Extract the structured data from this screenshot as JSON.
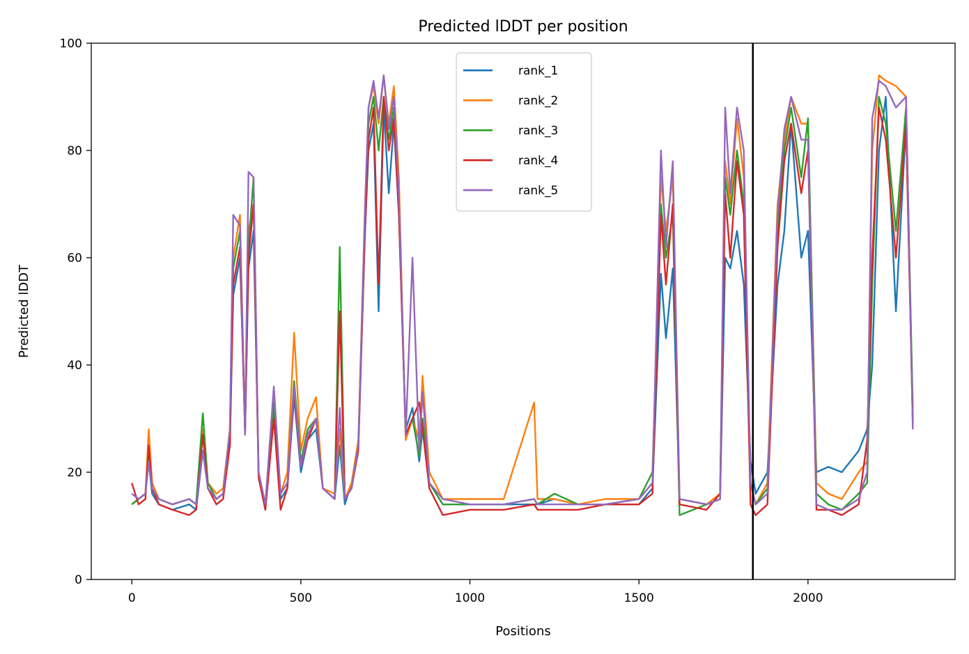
{
  "chart_data": {
    "type": "line",
    "title": "Predicted lDDT per position",
    "xlabel": "Positions",
    "ylabel": "Predicted lDDT",
    "xlim": [
      -120,
      2435
    ],
    "ylim": [
      0,
      100
    ],
    "xticks": [
      0,
      500,
      1000,
      1500,
      2000
    ],
    "yticks": [
      0,
      20,
      40,
      60,
      80,
      100
    ],
    "grid": false,
    "legend_position": "upper-center",
    "vline": {
      "x": 1837,
      "color": "#000000"
    },
    "colors": {
      "rank_1": "#1f77b4",
      "rank_2": "#ff7f0e",
      "rank_3": "#2ca02c",
      "rank_4": "#d62728",
      "rank_5": "#9467bd"
    },
    "x": [
      0,
      20,
      40,
      50,
      60,
      80,
      120,
      170,
      190,
      210,
      225,
      250,
      270,
      290,
      300,
      320,
      335,
      345,
      360,
      375,
      395,
      420,
      440,
      460,
      480,
      500,
      520,
      545,
      565,
      600,
      615,
      630,
      650,
      670,
      690,
      700,
      715,
      730,
      745,
      760,
      775,
      790,
      810,
      830,
      850,
      860,
      880,
      920,
      1000,
      1100,
      1190,
      1200,
      1250,
      1320,
      1400,
      1500,
      1540,
      1565,
      1580,
      1600,
      1620,
      1700,
      1740,
      1755,
      1770,
      1790,
      1810,
      1830,
      1845,
      1880,
      1910,
      1930,
      1950,
      1980,
      2000,
      2025,
      2060,
      2100,
      2150,
      2175,
      2190,
      2210,
      2230,
      2260,
      2290,
      2310
    ],
    "series": [
      {
        "name": "rank_1",
        "values": [
          14,
          15,
          16,
          22,
          16,
          14,
          13,
          14,
          13,
          24,
          17,
          15,
          16,
          25,
          53,
          60,
          28,
          58,
          65,
          20,
          14,
          32,
          15,
          17,
          34,
          20,
          26,
          28,
          17,
          15,
          25,
          14,
          18,
          25,
          65,
          80,
          85,
          50,
          88,
          72,
          85,
          68,
          28,
          32,
          22,
          28,
          18,
          14,
          14,
          14,
          14,
          14,
          15,
          14,
          14,
          14,
          17,
          57,
          45,
          58,
          15,
          14,
          15,
          60,
          58,
          65,
          55,
          22,
          16,
          20,
          55,
          65,
          85,
          60,
          65,
          20,
          21,
          20,
          24,
          28,
          40,
          80,
          90,
          50,
          85,
          30
        ]
      },
      {
        "name": "rank_2",
        "values": [
          14,
          15,
          16,
          28,
          18,
          15,
          14,
          15,
          14,
          28,
          18,
          16,
          17,
          28,
          60,
          68,
          28,
          65,
          70,
          20,
          14,
          35,
          16,
          20,
          46,
          24,
          30,
          34,
          17,
          16,
          28,
          15,
          18,
          26,
          70,
          88,
          92,
          85,
          94,
          85,
          92,
          75,
          26,
          30,
          26,
          38,
          20,
          15,
          15,
          15,
          33,
          15,
          15,
          14,
          15,
          15,
          18,
          75,
          65,
          75,
          15,
          14,
          16,
          78,
          70,
          86,
          75,
          18,
          14,
          18,
          70,
          82,
          90,
          85,
          85,
          18,
          16,
          15,
          20,
          22,
          80,
          94,
          93,
          92,
          90,
          30
        ]
      },
      {
        "name": "rank_3",
        "values": [
          14,
          15,
          16,
          24,
          17,
          15,
          14,
          15,
          14,
          31,
          18,
          15,
          16,
          27,
          58,
          65,
          27,
          62,
          75,
          20,
          13,
          33,
          16,
          18,
          37,
          22,
          28,
          30,
          17,
          15,
          62,
          15,
          17,
          25,
          68,
          85,
          90,
          80,
          90,
          82,
          88,
          70,
          27,
          30,
          23,
          30,
          18,
          14,
          14,
          14,
          15,
          14,
          16,
          14,
          14,
          15,
          20,
          70,
          60,
          68,
          12,
          14,
          15,
          75,
          68,
          80,
          70,
          18,
          14,
          17,
          65,
          80,
          88,
          75,
          86,
          16,
          14,
          13,
          16,
          18,
          55,
          90,
          85,
          65,
          88,
          32
        ]
      },
      {
        "name": "rank_4",
        "values": [
          18,
          14,
          15,
          25,
          17,
          14,
          13,
          12,
          13,
          27,
          17,
          14,
          15,
          25,
          55,
          62,
          27,
          60,
          70,
          19,
          13,
          30,
          13,
          17,
          35,
          21,
          26,
          30,
          17,
          15,
          50,
          15,
          17,
          24,
          66,
          82,
          88,
          55,
          90,
          80,
          86,
          68,
          27,
          30,
          33,
          28,
          17,
          12,
          13,
          13,
          14,
          13,
          13,
          13,
          14,
          14,
          16,
          68,
          55,
          70,
          14,
          13,
          16,
          72,
          60,
          78,
          68,
          14,
          12,
          14,
          62,
          78,
          85,
          72,
          80,
          13,
          13,
          12,
          14,
          26,
          60,
          88,
          82,
          60,
          85,
          29
        ]
      },
      {
        "name": "rank_5",
        "values": [
          16,
          15,
          16,
          22,
          17,
          15,
          14,
          15,
          14,
          24,
          17,
          15,
          16,
          28,
          68,
          66,
          27,
          76,
          75,
          20,
          14,
          36,
          16,
          18,
          36,
          21,
          27,
          30,
          17,
          15,
          32,
          15,
          17,
          25,
          70,
          88,
          93,
          86,
          94,
          84,
          90,
          72,
          27,
          60,
          24,
          35,
          18,
          15,
          14,
          14,
          15,
          14,
          14,
          14,
          14,
          15,
          18,
          80,
          62,
          78,
          15,
          14,
          15,
          88,
          72,
          88,
          80,
          18,
          14,
          16,
          68,
          84,
          90,
          82,
          82,
          14,
          13,
          13,
          15,
          20,
          86,
          93,
          92,
          88,
          90,
          28
        ]
      }
    ]
  }
}
